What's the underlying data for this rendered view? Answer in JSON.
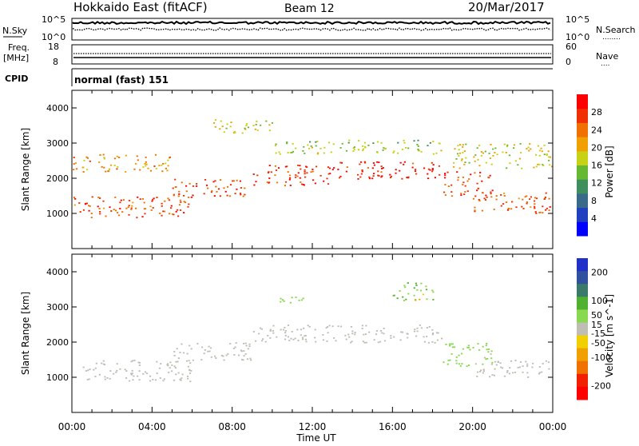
{
  "header": {
    "title": "Hokkaido East (fitACF)",
    "beam": "Beam 12",
    "date": "20/Mar/2017"
  },
  "noise_panel": {
    "left_label": "N.Sky",
    "right_label": "N.Search",
    "left_ticks": [
      "10^5",
      "10^0"
    ],
    "right_ticks": [
      "10^5",
      "10^0"
    ],
    "right_legend": "........"
  },
  "freq_panel": {
    "left_label_1": "Freq.",
    "left_label_2": "[MHz]",
    "right_label": "Nave",
    "left_ticks": [
      "18",
      "8"
    ],
    "right_ticks": [
      "60",
      "0"
    ],
    "right_legend": "...."
  },
  "cpid_panel": {
    "label": "CPID",
    "value": "normal (fast) 151"
  },
  "xaxis": {
    "label": "Time UT",
    "ticks": [
      "00:00",
      "04:00",
      "08:00",
      "12:00",
      "16:00",
      "20:00",
      "00:00"
    ]
  },
  "colors": {
    "power": [
      "#0000ff",
      "#2040c0",
      "#3a6a8a",
      "#3e8e5e",
      "#66b832",
      "#c8d214",
      "#f0a000",
      "#f07000",
      "#f03000",
      "#ff0000"
    ],
    "velocity": [
      "#2030c8",
      "#3050a0",
      "#3a7a6a",
      "#50b030",
      "#88d850",
      "#bebeb4",
      "#f0d000",
      "#f0a000",
      "#f07000",
      "#f02000",
      "#ff0000"
    ]
  },
  "chart_data": [
    {
      "type": "heatmap",
      "title": "",
      "xlabel": "",
      "ylabel": "Slant Range [km]",
      "y_ticks": [
        1000,
        2000,
        3000,
        4000
      ],
      "ylim": [
        0,
        4500
      ],
      "xlim_hours": [
        0,
        24
      ],
      "colorbar": {
        "label": "Power [dB]",
        "range": [
          0,
          32
        ],
        "ticks": [
          4,
          8,
          12,
          16,
          20,
          24,
          28
        ]
      },
      "scatter_regions": [
        {
          "from_hour": 0,
          "to_hour": 6,
          "range_km": [
            900,
            1500
          ],
          "value_db": 26
        },
        {
          "from_hour": 5,
          "to_hour": 9,
          "range_km": [
            1500,
            2000
          ],
          "value_db": 27
        },
        {
          "from_hour": 9,
          "to_hour": 13,
          "range_km": [
            1800,
            2400
          ],
          "value_db": 28
        },
        {
          "from_hour": 13,
          "to_hour": 18.5,
          "range_km": [
            2000,
            2500
          ],
          "value_db": 29
        },
        {
          "from_hour": 18.5,
          "to_hour": 21,
          "range_km": [
            1500,
            2200
          ],
          "value_db": 27
        },
        {
          "from_hour": 20,
          "to_hour": 24,
          "range_km": [
            1000,
            1600
          ],
          "value_db": 26
        },
        {
          "from_hour": 0,
          "to_hour": 5,
          "range_km": [
            2200,
            2700
          ],
          "value_db": 22
        },
        {
          "from_hour": 7,
          "to_hour": 10,
          "range_km": [
            3300,
            3700
          ],
          "value_db": 18
        },
        {
          "from_hour": 10,
          "to_hour": 18.5,
          "range_km": [
            2700,
            3100
          ],
          "value_db": 16
        },
        {
          "from_hour": 19,
          "to_hour": 24,
          "range_km": [
            2300,
            3000
          ],
          "value_db": 18
        }
      ]
    },
    {
      "type": "heatmap",
      "title": "",
      "xlabel": "Time UT",
      "ylabel": "Slant Range [km]",
      "y_ticks": [
        1000,
        2000,
        3000,
        4000
      ],
      "ylim": [
        0,
        4500
      ],
      "xlim_hours": [
        0,
        24
      ],
      "colorbar": {
        "label": "Velocity [m s^-1]",
        "range": [
          -250,
          250
        ],
        "ticks": [
          200,
          100,
          50,
          15,
          -15,
          -50,
          -100,
          -200
        ]
      },
      "scatter_regions": [
        {
          "from_hour": 0,
          "to_hour": 6,
          "range_km": [
            900,
            1500
          ],
          "value_ms": 0
        },
        {
          "from_hour": 5,
          "to_hour": 9,
          "range_km": [
            1500,
            2000
          ],
          "value_ms": 0
        },
        {
          "from_hour": 9,
          "to_hour": 18.5,
          "range_km": [
            2000,
            2500
          ],
          "value_ms": 0
        },
        {
          "from_hour": 18.5,
          "to_hour": 21,
          "range_km": [
            1300,
            2000
          ],
          "value_ms": 40
        },
        {
          "from_hour": 20,
          "to_hour": 24,
          "range_km": [
            1000,
            1500
          ],
          "value_ms": 0
        },
        {
          "from_hour": 10,
          "to_hour": 12,
          "range_km": [
            3100,
            3300
          ],
          "value_ms": 50
        },
        {
          "from_hour": 16,
          "to_hour": 18,
          "range_km": [
            3200,
            3700
          ],
          "value_ms": 60
        },
        {
          "from_hour": 17,
          "to_hour": 17.5,
          "range_km": [
            3200,
            3400
          ],
          "value_ms": -80
        }
      ]
    }
  ]
}
